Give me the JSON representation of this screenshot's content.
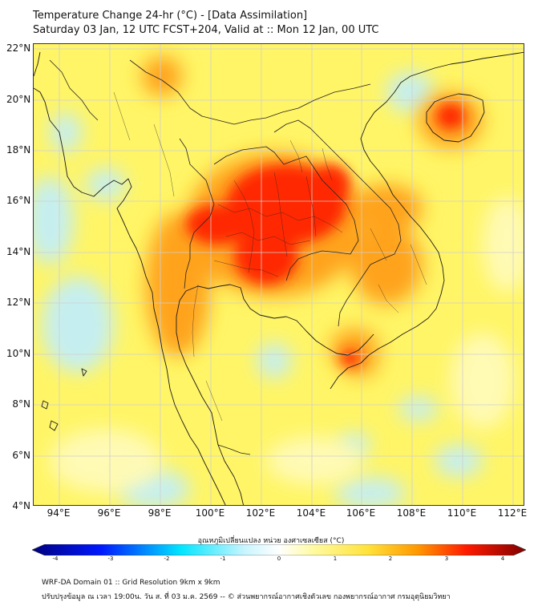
{
  "header": {
    "title_line1": "Temperature Change 24-hr (°C) - [Data Assimilation]",
    "title_line2": "Saturday 03 Jan, 12 UTC FCST+204, Valid at :: Mon 12 Jan, 00 UTC"
  },
  "axes": {
    "lat_labels": [
      "22°N",
      "20°N",
      "18°N",
      "16°N",
      "14°N",
      "12°N",
      "10°N",
      "8°N",
      "6°N",
      "4°N"
    ],
    "lon_labels": [
      "94°E",
      "96°E",
      "98°E",
      "100°E",
      "102°E",
      "104°E",
      "106°E",
      "108°E",
      "110°E",
      "112°E"
    ]
  },
  "colorbar": {
    "label": "อุณหภูมิเปลี่ยนแปลง หน่วย องศาเซลเซียส (°C)",
    "ticks": [
      "-4",
      "-3",
      "-2",
      "-1",
      "0",
      "1",
      "2",
      "3",
      "4"
    ],
    "range": [
      -4,
      4
    ],
    "colors": [
      "#00007f",
      "#0019ff",
      "#00e5ff",
      "#ffffff",
      "#fff566",
      "#ff9900",
      "#ff1a00",
      "#7f0000"
    ]
  },
  "footer": {
    "line1": "WRF-DA Domain 01 :: Grid Resolution 9km x 9km",
    "line2": "ปรับปรุงข้อมูล ณ เวลา 19:00น. วัน ส. ที่ 03 ม.ค. 2569 -- © ส่วนพยากรณ์อากาศเชิงตัวเลข กองพยากรณ์อากาศ กรมอุตุนิยมวิทยา"
  },
  "colors": {
    "background_field": "#fff566",
    "warm_orange": "#ffa31a",
    "hot_red": "#ff2200",
    "cool_blue": "#bfeeff"
  }
}
